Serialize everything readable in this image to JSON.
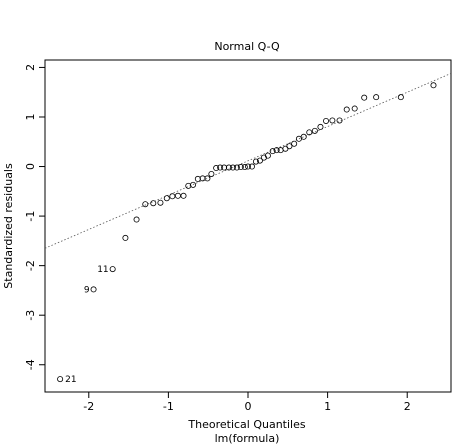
{
  "chart_data": {
    "type": "scatter",
    "title": "Normal Q-Q",
    "xlabel": "Theoretical Quantiles",
    "xlabel_sub": "lm(formula)",
    "ylabel": "Standardized residuals",
    "xlim": [
      -2.55,
      2.55
    ],
    "ylim": [
      -4.55,
      2.15
    ],
    "xticks": [
      -2,
      -1,
      0,
      1,
      2
    ],
    "yticks": [
      -4,
      -3,
      -2,
      -1,
      0,
      1,
      2
    ],
    "grid": false,
    "reference_line": {
      "style": "dotted",
      "points": [
        [
          -2.55,
          -1.65
        ],
        [
          2.55,
          1.88
        ]
      ]
    },
    "points": [
      [
        -2.36,
        -4.29
      ],
      [
        -1.94,
        -2.48
      ],
      [
        -1.7,
        -2.07
      ],
      [
        -1.54,
        -1.44
      ],
      [
        -1.4,
        -1.07
      ],
      [
        -1.29,
        -0.76
      ],
      [
        -1.19,
        -0.74
      ],
      [
        -1.1,
        -0.73
      ],
      [
        -1.02,
        -0.64
      ],
      [
        -0.95,
        -0.6
      ],
      [
        -0.88,
        -0.59
      ],
      [
        -0.81,
        -0.59
      ],
      [
        -0.75,
        -0.39
      ],
      [
        -0.69,
        -0.37
      ],
      [
        -0.63,
        -0.25
      ],
      [
        -0.57,
        -0.24
      ],
      [
        -0.51,
        -0.24
      ],
      [
        -0.46,
        -0.15
      ],
      [
        -0.4,
        -0.03
      ],
      [
        -0.35,
        -0.02
      ],
      [
        -0.3,
        -0.02
      ],
      [
        -0.24,
        -0.02
      ],
      [
        -0.19,
        -0.02
      ],
      [
        -0.14,
        -0.02
      ],
      [
        -0.09,
        -0.01
      ],
      [
        -0.04,
        -0.01
      ],
      [
        0.0,
        0.0
      ],
      [
        0.05,
        0.0
      ],
      [
        0.1,
        0.1
      ],
      [
        0.15,
        0.12
      ],
      [
        0.2,
        0.18
      ],
      [
        0.25,
        0.22
      ],
      [
        0.31,
        0.31
      ],
      [
        0.36,
        0.33
      ],
      [
        0.41,
        0.33
      ],
      [
        0.47,
        0.36
      ],
      [
        0.52,
        0.41
      ],
      [
        0.58,
        0.46
      ],
      [
        0.64,
        0.56
      ],
      [
        0.7,
        0.6
      ],
      [
        0.77,
        0.69
      ],
      [
        0.84,
        0.72
      ],
      [
        0.91,
        0.8
      ],
      [
        0.98,
        0.92
      ],
      [
        1.06,
        0.93
      ],
      [
        1.15,
        0.93
      ],
      [
        1.24,
        1.15
      ],
      [
        1.34,
        1.17
      ],
      [
        1.46,
        1.39
      ],
      [
        1.61,
        1.4
      ],
      [
        1.92,
        1.4
      ],
      [
        2.33,
        1.64
      ]
    ],
    "point_labels": [
      {
        "text": "21",
        "x": -2.36,
        "y": -4.29
      },
      {
        "text": "9",
        "x": -1.94,
        "y": -2.48
      },
      {
        "text": "11",
        "x": -1.7,
        "y": -2.07
      }
    ]
  }
}
